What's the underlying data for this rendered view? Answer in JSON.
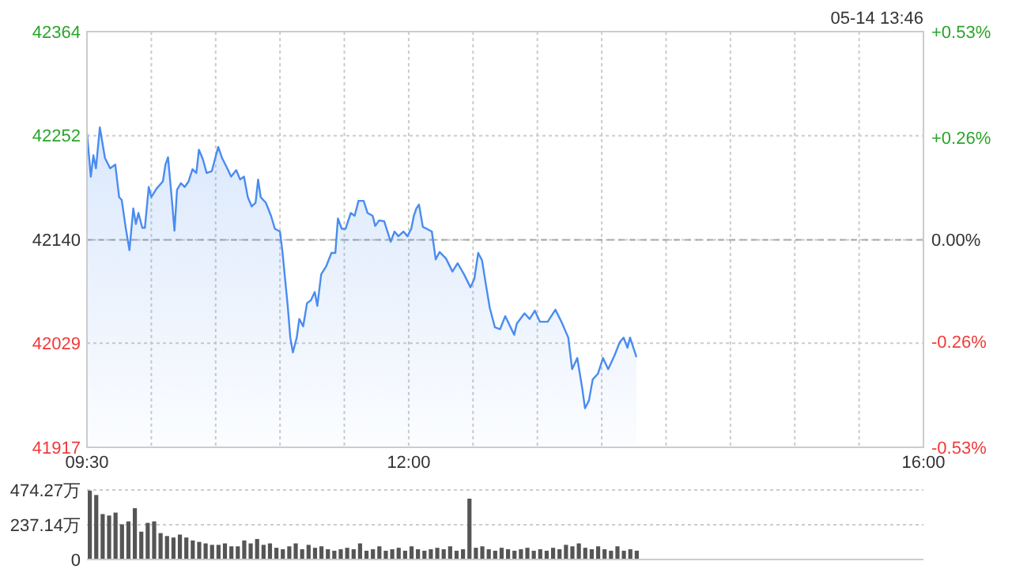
{
  "chart_data": [
    {
      "type": "area",
      "annotations": [
        "05-14 13:46"
      ],
      "x": [
        9.5,
        9.53,
        9.55,
        9.57,
        9.6,
        9.64,
        9.68,
        9.72,
        9.75,
        9.77,
        9.8,
        9.83,
        9.86,
        9.88,
        9.9,
        9.93,
        9.95,
        9.98,
        10.0,
        10.04,
        10.09,
        10.11,
        10.13,
        10.16,
        10.18,
        10.2,
        10.23,
        10.26,
        10.29,
        10.32,
        10.35,
        10.37,
        10.4,
        10.43,
        10.47,
        10.52,
        10.55,
        10.59,
        10.62,
        10.66,
        10.69,
        10.72,
        10.75,
        10.78,
        10.81,
        10.83,
        10.85,
        10.89,
        10.93,
        10.96,
        11.0,
        11.02,
        11.06,
        11.08,
        11.1,
        11.13,
        11.15,
        11.18,
        11.21,
        11.24,
        11.27,
        11.29,
        11.32,
        11.36,
        11.4,
        11.43,
        11.45,
        11.48,
        11.51,
        11.55,
        11.58,
        11.61,
        11.65,
        11.68,
        11.72,
        11.74,
        11.77,
        11.81,
        11.86,
        11.89,
        11.92,
        11.96,
        11.99,
        12.02,
        12.04,
        12.06,
        12.08,
        12.11,
        12.14,
        12.18,
        12.21,
        12.24,
        12.29,
        12.34,
        12.38,
        12.43,
        12.48,
        12.51,
        12.54,
        12.57,
        12.6,
        12.63,
        12.67,
        12.71,
        12.75,
        12.82,
        12.84,
        12.9,
        12.94,
        12.98,
        13.02,
        13.08,
        13.14,
        13.19,
        13.24,
        13.27,
        13.31,
        13.35,
        13.37,
        13.4,
        13.43,
        13.47,
        13.51,
        13.55,
        13.6,
        13.64,
        13.67,
        13.7,
        13.72,
        13.77
      ],
      "series": [
        {
          "color": "#4a8cf0",
          "values": [
            42255,
            42208,
            42231,
            42217,
            42261,
            42228,
            42217,
            42221,
            42186,
            42183,
            42154,
            42129,
            42174,
            42157,
            42169,
            42153,
            42153,
            42197,
            42186,
            42195,
            42203,
            42221,
            42229,
            42183,
            42150,
            42194,
            42201,
            42197,
            42203,
            42216,
            42212,
            42237,
            42227,
            42212,
            42214,
            42240,
            42228,
            42217,
            42208,
            42215,
            42205,
            42208,
            42186,
            42176,
            42180,
            42205,
            42186,
            42180,
            42166,
            42152,
            42149,
            42126,
            42069,
            42035,
            42019,
            42035,
            42055,
            42047,
            42072,
            42075,
            42084,
            42069,
            42103,
            42112,
            42126,
            42126,
            42163,
            42152,
            42152,
            42169,
            42166,
            42182,
            42182,
            42169,
            42166,
            42155,
            42161,
            42160,
            42138,
            42149,
            42144,
            42149,
            42144,
            42152,
            42166,
            42174,
            42178,
            42154,
            42152,
            42149,
            42119,
            42127,
            42120,
            42106,
            42115,
            42103,
            42089,
            42098,
            42126,
            42118,
            42092,
            42067,
            42046,
            42044,
            42058,
            42038,
            42050,
            42061,
            42055,
            42064,
            42052,
            42052,
            42065,
            42051,
            42035,
            42001,
            42013,
            41979,
            41959,
            41967,
            41990,
            41996,
            42013,
            42001,
            42016,
            42030,
            42035,
            42024,
            42035,
            42014
          ]
        }
      ],
      "xlim": [
        9.5,
        16
      ],
      "xticks": [
        {
          "value": 9.5,
          "label": "09:30"
        },
        {
          "value": 10,
          "label": null
        },
        {
          "value": 10.5,
          "label": null
        },
        {
          "value": 11,
          "label": null
        },
        {
          "value": 11.5,
          "label": null
        },
        {
          "value": 12,
          "label": "12:00"
        },
        {
          "value": 12.5,
          "label": null
        },
        {
          "value": 13,
          "label": null
        },
        {
          "value": 13.5,
          "label": null
        },
        {
          "value": 14,
          "label": null
        },
        {
          "value": 14.5,
          "label": null
        },
        {
          "value": 15,
          "label": null
        },
        {
          "value": 15.5,
          "label": null
        },
        {
          "value": 16,
          "label": "16:00"
        }
      ],
      "ylim": [
        41917,
        42364
      ],
      "yticks": [
        41917,
        42029,
        42140,
        42252,
        42364
      ],
      "y2lim": [
        -0.53,
        0.53
      ],
      "y2ticks": [
        {
          "value": -0.53,
          "label": "-0.53%"
        },
        {
          "value": -0.26,
          "label": "-0.26%"
        },
        {
          "value": 0,
          "label": "0.00%"
        },
        {
          "value": 0.26,
          "label": "+0.26%"
        },
        {
          "value": 0.53,
          "label": "+0.53%"
        }
      ],
      "ref_lines": [
        {
          "axis": "y",
          "value": 42140,
          "line_style": "dashed",
          "color": "#aaaaaa"
        }
      ],
      "grid": true
    },
    {
      "type": "bar",
      "color": "#555555",
      "tick_labels": "y",
      "grid": "y",
      "x": [
        9.5,
        9.55,
        9.6,
        9.65,
        9.7,
        9.75,
        9.8,
        9.85,
        9.9,
        9.95,
        10.0,
        10.05,
        10.1,
        10.15,
        10.2,
        10.25,
        10.3,
        10.35,
        10.4,
        10.45,
        10.5,
        10.55,
        10.6,
        10.65,
        10.7,
        10.75,
        10.8,
        10.85,
        10.9,
        10.95,
        11.0,
        11.05,
        11.1,
        11.15,
        11.2,
        11.25,
        11.3,
        11.35,
        11.4,
        11.45,
        11.5,
        11.55,
        11.6,
        11.65,
        11.7,
        11.75,
        11.8,
        11.85,
        11.9,
        11.95,
        12.0,
        12.05,
        12.1,
        12.15,
        12.2,
        12.25,
        12.3,
        12.35,
        12.4,
        12.45,
        12.5,
        12.55,
        12.6,
        12.65,
        12.7,
        12.75,
        12.8,
        12.85,
        12.9,
        12.95,
        13.0,
        13.05,
        13.1,
        13.15,
        13.2,
        13.25,
        13.3,
        13.35,
        13.4,
        13.45,
        13.5,
        13.55,
        13.6,
        13.65,
        13.7,
        13.75
      ],
      "values": [
        470,
        440,
        310,
        300,
        320,
        240,
        260,
        350,
        190,
        250,
        260,
        180,
        160,
        150,
        170,
        150,
        130,
        120,
        110,
        100,
        100,
        110,
        90,
        90,
        130,
        110,
        140,
        100,
        110,
        80,
        70,
        90,
        110,
        70,
        100,
        80,
        90,
        70,
        60,
        70,
        80,
        70,
        110,
        60,
        70,
        90,
        60,
        70,
        80,
        60,
        90,
        70,
        60,
        70,
        80,
        70,
        90,
        60,
        70,
        415,
        80,
        90,
        70,
        60,
        80,
        70,
        60,
        70,
        80,
        60,
        70,
        60,
        80,
        70,
        100,
        90,
        110,
        80,
        70,
        90,
        70,
        60,
        90,
        60,
        70,
        60
      ],
      "xlim": [
        9.5,
        16
      ],
      "ylim": [
        0,
        474.27
      ],
      "yticks": [
        0,
        {
          "value": 237.14,
          "label": "237.14万"
        },
        {
          "value": 474.27,
          "label": "474.27万"
        }
      ]
    }
  ]
}
